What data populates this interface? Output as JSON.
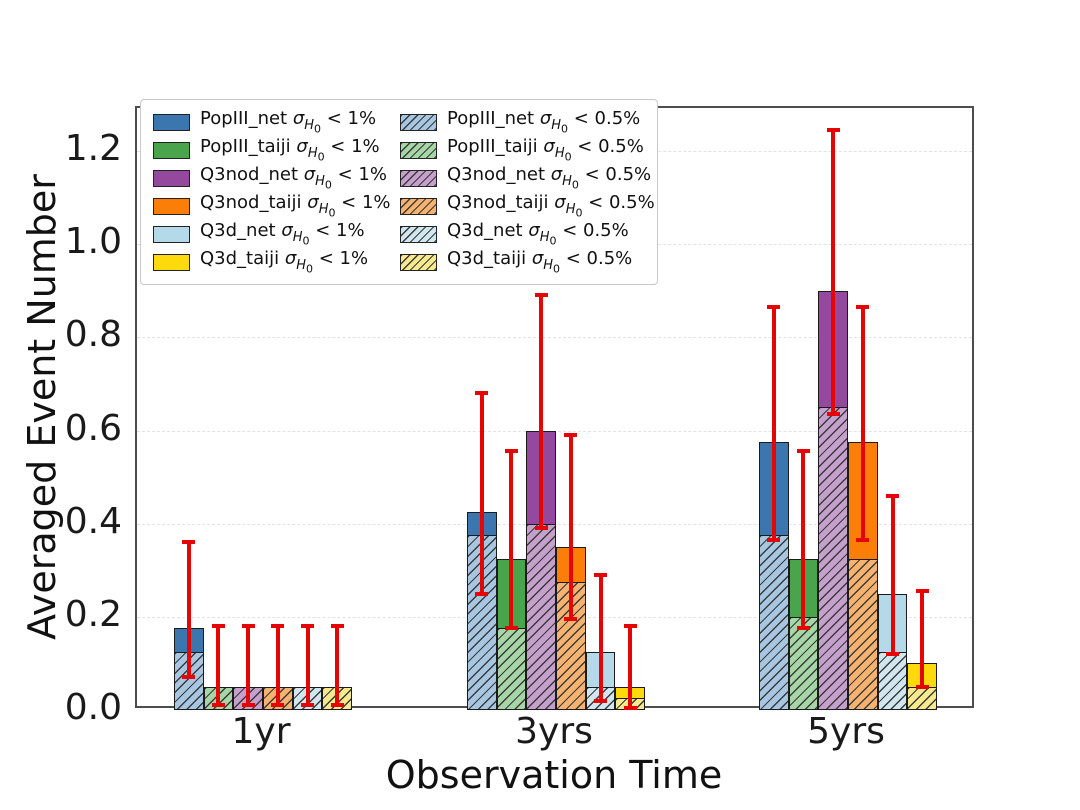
{
  "chart_data": {
    "type": "bar",
    "title": "",
    "xlabel": "Observation Time",
    "ylabel": "Averaged Event Number",
    "categories": [
      "1yr",
      "3yrs",
      "5yrs"
    ],
    "ylim": [
      0,
      1.29
    ],
    "yticks": [
      0.0,
      0.2,
      0.4,
      0.6,
      0.8,
      1.0,
      1.2
    ],
    "grid": "horizontal-dashed",
    "legend_position": "upper-left",
    "sigma_symbol": "σ",
    "sigma_subscript_letter": "H",
    "sigma_subscript_number": "0",
    "series": [
      {
        "name": "PopIII_net",
        "constraint": "< 1%",
        "style": "solid",
        "color": "#3b76af",
        "values": [
          0.175,
          0.425,
          0.575
        ]
      },
      {
        "name": "PopIII_taiji",
        "constraint": "< 1%",
        "style": "solid",
        "color": "#4aa44c",
        "values": [
          0.05,
          0.325,
          0.325
        ]
      },
      {
        "name": "Q3nod_net",
        "constraint": "< 1%",
        "style": "solid",
        "color": "#94499e",
        "values": [
          0.05,
          0.6,
          0.9
        ]
      },
      {
        "name": "Q3nod_taiji",
        "constraint": "< 1%",
        "style": "solid",
        "color": "#fa7e08",
        "values": [
          0.05,
          0.35,
          0.575
        ]
      },
      {
        "name": "Q3d_net",
        "constraint": "< 1%",
        "style": "solid",
        "color": "#b4d9e9",
        "values": [
          0.05,
          0.125,
          0.25
        ]
      },
      {
        "name": "Q3d_taiji",
        "constraint": "< 1%",
        "style": "solid",
        "color": "#fed90c",
        "values": [
          0.05,
          0.05,
          0.1
        ]
      },
      {
        "name": "PopIII_net",
        "constraint": "< 0.5%",
        "style": "hatched",
        "color": "#a7c6e2",
        "values": [
          0.125,
          0.375,
          0.375
        ]
      },
      {
        "name": "PopIII_taiji",
        "constraint": "< 0.5%",
        "style": "hatched",
        "color": "#a6d6a6",
        "values": [
          0.05,
          0.175,
          0.2
        ]
      },
      {
        "name": "Q3nod_net",
        "constraint": "< 0.5%",
        "style": "hatched",
        "color": "#c6a0cc",
        "values": [
          0.05,
          0.4,
          0.65
        ]
      },
      {
        "name": "Q3nod_taiji",
        "constraint": "< 0.5%",
        "style": "hatched",
        "color": "#f6b26f",
        "values": [
          0.05,
          0.275,
          0.325
        ]
      },
      {
        "name": "Q3d_net",
        "constraint": "< 0.5%",
        "style": "hatched",
        "color": "#d0e7ef",
        "values": [
          0.05,
          0.05,
          0.125
        ]
      },
      {
        "name": "Q3d_taiji",
        "constraint": "< 0.5%",
        "style": "hatched",
        "color": "#f6e98e",
        "values": [
          0.05,
          0.025,
          0.05
        ]
      }
    ],
    "error_bars": {
      "color": "#e60505",
      "series": [
        {
          "name": "PopIII_net",
          "ranges": [
            [
              0.07,
              0.36
            ],
            [
              0.25,
              0.68
            ],
            [
              0.365,
              0.865
            ]
          ]
        },
        {
          "name": "PopIII_taiji",
          "ranges": [
            [
              0.01,
              0.18
            ],
            [
              0.175,
              0.555
            ],
            [
              0.175,
              0.555
            ]
          ]
        },
        {
          "name": "Q3nod_net",
          "ranges": [
            [
              0.01,
              0.18
            ],
            [
              0.39,
              0.89
            ],
            [
              0.635,
              1.245
            ]
          ]
        },
        {
          "name": "Q3nod_taiji",
          "ranges": [
            [
              0.01,
              0.18
            ],
            [
              0.195,
              0.59
            ],
            [
              0.365,
              0.865
            ]
          ]
        },
        {
          "name": "Q3d_net",
          "ranges": [
            [
              0.01,
              0.18
            ],
            [
              0.02,
              0.29
            ],
            [
              0.12,
              0.46
            ]
          ]
        },
        {
          "name": "Q3d_taiji",
          "ranges": [
            [
              0.01,
              0.18
            ],
            [
              0.005,
              0.18
            ],
            [
              0.05,
              0.255
            ]
          ]
        }
      ]
    }
  }
}
